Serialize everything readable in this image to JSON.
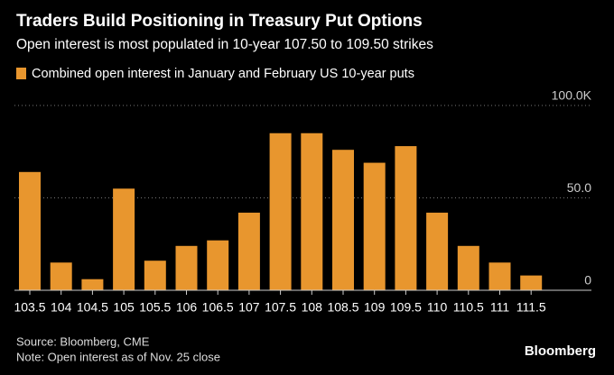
{
  "chart_data": {
    "type": "bar",
    "title": "Traders Build Positioning in Treasury Put Options",
    "subtitle": "Open interest is most populated in 10-year 107.50 to 109.50 strikes",
    "categories": [
      "103.5",
      "104",
      "104.5",
      "105",
      "105.5",
      "106",
      "106.5",
      "107",
      "107.5",
      "108",
      "108.5",
      "109",
      "109.5",
      "110",
      "110.5",
      "111",
      "111.5"
    ],
    "series": [
      {
        "name": "Combined open interest in January and February US 10-year puts",
        "color": "#e8962e",
        "values": [
          64,
          15,
          6,
          55,
          16,
          24,
          27,
          42,
          85,
          85,
          76,
          69,
          78,
          42,
          24,
          15,
          8
        ]
      }
    ],
    "ylim": [
      0,
      100
    ],
    "yticks": [
      0,
      {
        "value": 50,
        "label": "50.0"
      },
      {
        "value": 100,
        "label": "100.0K"
      }
    ],
    "grid": true,
    "source": "Source: Bloomberg, CME",
    "note": "Note: Open interest as of Nov. 25 close",
    "brand": "Bloomberg"
  }
}
